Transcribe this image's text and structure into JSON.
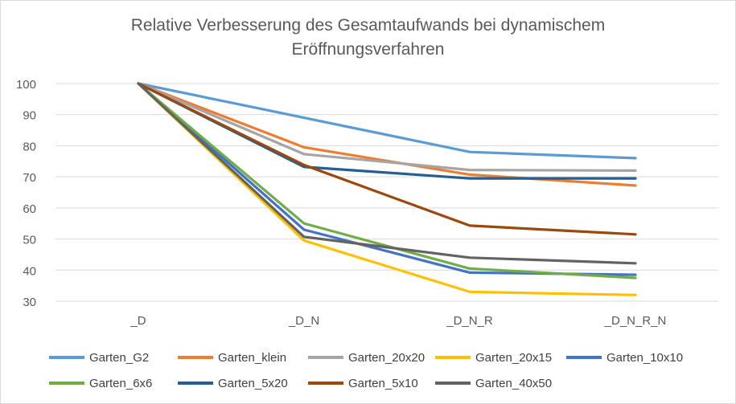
{
  "chart_data": {
    "type": "line",
    "title_lines": [
      "Relative Verbesserung des Gesamtaufwands bei dynamischem",
      "Eröffnungsverfahren"
    ],
    "categories": [
      "_D",
      "_D_N",
      "_D_N_R",
      "_D_N_R_N"
    ],
    "xlabel": "",
    "ylabel": "",
    "ylim": [
      30,
      100
    ],
    "yticks": [
      30,
      40,
      50,
      60,
      70,
      80,
      90,
      100
    ],
    "grid": true,
    "legend": "bottom",
    "series": [
      {
        "name": "Garten_G2",
        "color": "#5b9bd5",
        "values": [
          100,
          89,
          78,
          76
        ]
      },
      {
        "name": "Garten_klein",
        "color": "#ed7d31",
        "values": [
          100,
          79.5,
          70.7,
          67.2
        ]
      },
      {
        "name": "Garten_20x20",
        "color": "#a5a5a5",
        "values": [
          100,
          77.3,
          72.2,
          72
        ]
      },
      {
        "name": "Garten_20x15",
        "color": "#ffc000",
        "values": [
          100,
          49.5,
          33,
          32
        ]
      },
      {
        "name": "Garten_10x10",
        "color": "#4472c4",
        "values": [
          100,
          53,
          39.2,
          38.5
        ]
      },
      {
        "name": "Garten_6x6",
        "color": "#70ad47",
        "values": [
          100,
          55,
          40.5,
          37.5
        ]
      },
      {
        "name": "Garten_5x20",
        "color": "#255e91",
        "values": [
          100,
          73.2,
          69.5,
          69.5
        ]
      },
      {
        "name": "Garten_5x10",
        "color": "#9e480e",
        "values": [
          100,
          73.8,
          54.3,
          51.5
        ]
      },
      {
        "name": "Garten_40x50",
        "color": "#636363",
        "values": [
          100,
          50.7,
          44,
          42.2
        ]
      }
    ]
  }
}
